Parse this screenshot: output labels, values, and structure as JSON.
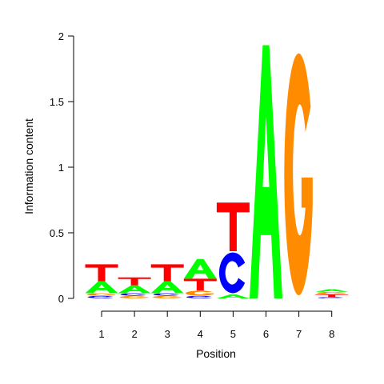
{
  "chart_data": {
    "type": "sequence-logo",
    "xlabel": "Position",
    "ylabel": "Information content",
    "ylim": [
      0,
      2
    ],
    "yticks": [
      "0",
      "0.5",
      "1",
      "1.5",
      "2"
    ],
    "x_tick_labels": [
      "1",
      "2",
      "3",
      "4",
      "5",
      "6",
      "7",
      "8"
    ],
    "colors": {
      "A": "#00ff00",
      "C": "#0000ff",
      "G": "#ff8c00",
      "T": "#ff0000"
    },
    "positions": [
      {
        "position": "1",
        "stack": [
          {
            "letter": "C",
            "bits": 0.02
          },
          {
            "letter": "G",
            "bits": 0.02
          },
          {
            "letter": "A",
            "bits": 0.09
          },
          {
            "letter": "T",
            "bits": 0.13
          }
        ]
      },
      {
        "position": "2",
        "stack": [
          {
            "letter": "G",
            "bits": 0.02
          },
          {
            "letter": "C",
            "bits": 0.02
          },
          {
            "letter": "A",
            "bits": 0.06
          },
          {
            "letter": "T",
            "bits": 0.06
          }
        ]
      },
      {
        "position": "3",
        "stack": [
          {
            "letter": "G",
            "bits": 0.02
          },
          {
            "letter": "C",
            "bits": 0.02
          },
          {
            "letter": "A",
            "bits": 0.09
          },
          {
            "letter": "T",
            "bits": 0.13
          }
        ]
      },
      {
        "position": "4",
        "stack": [
          {
            "letter": "C",
            "bits": 0.02
          },
          {
            "letter": "G",
            "bits": 0.04
          },
          {
            "letter": "T",
            "bits": 0.09
          },
          {
            "letter": "A",
            "bits": 0.15
          }
        ]
      },
      {
        "position": "5",
        "stack": [
          {
            "letter": "A",
            "bits": 0.03
          },
          {
            "letter": "C",
            "bits": 0.33
          },
          {
            "letter": "T",
            "bits": 0.37
          }
        ]
      },
      {
        "position": "6",
        "stack": [
          {
            "letter": "A",
            "bits": 1.93
          }
        ]
      },
      {
        "position": "7",
        "stack": [
          {
            "letter": "G",
            "bits": 1.92
          }
        ]
      },
      {
        "position": "8",
        "stack": [
          {
            "letter": "C",
            "bits": 0.01
          },
          {
            "letter": "T",
            "bits": 0.02
          },
          {
            "letter": "G",
            "bits": 0.02
          },
          {
            "letter": "A",
            "bits": 0.02
          }
        ]
      }
    ]
  }
}
